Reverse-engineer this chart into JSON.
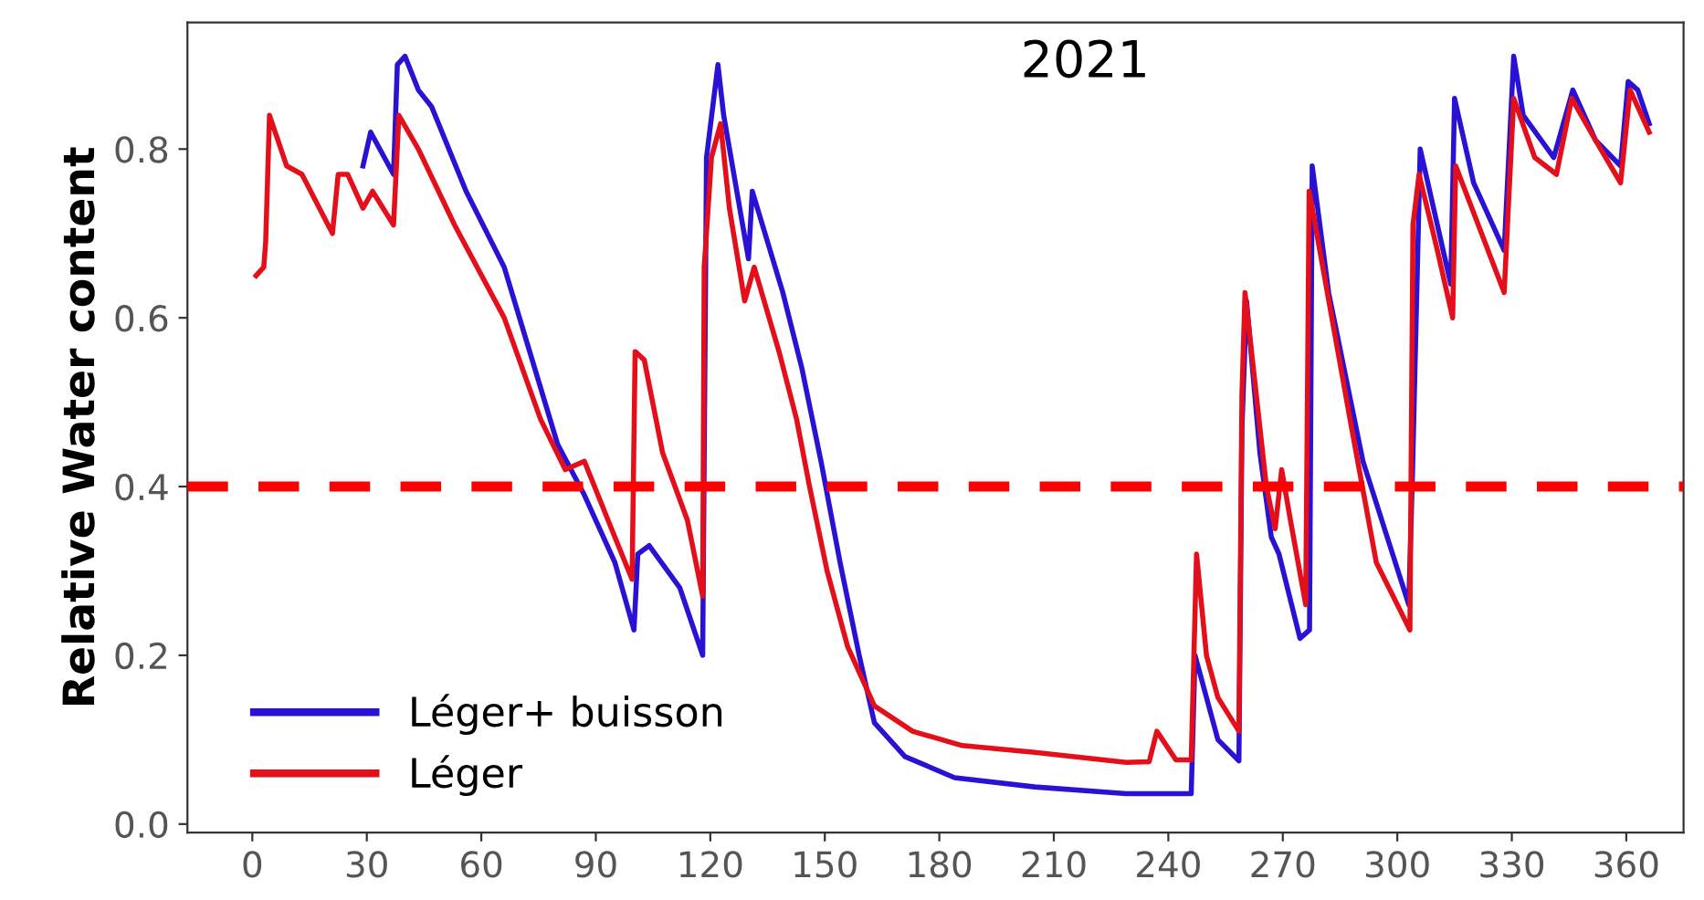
{
  "chart_data": {
    "type": "line",
    "title": "2021",
    "ylabel": "Relative Water content",
    "xlim": [
      -17,
      375
    ],
    "ylim": [
      -0.01,
      0.95
    ],
    "xticks": [
      0,
      30,
      60,
      90,
      120,
      150,
      180,
      210,
      240,
      270,
      300,
      330,
      360
    ],
    "yticks": [
      {
        "value": 0,
        "label": "0.0"
      },
      {
        "value": 0.2,
        "label": "0.2"
      },
      {
        "value": 0.4,
        "label": "0.4"
      },
      {
        "value": 0.6,
        "label": "0.6"
      },
      {
        "value": 0.8,
        "label": "0.8"
      }
    ],
    "grid": false,
    "legend": "bottom left",
    "line_style": "solid",
    "marker": "none",
    "ref_lines": [
      {
        "axis": "y",
        "value": 0.4,
        "color": "#ff0000",
        "line_style": "dashed"
      }
    ],
    "series": [
      {
        "name": "Léger+ buisson",
        "color": "#2a12d4",
        "x": [
          29,
          31,
          37,
          38,
          40,
          43.5,
          47,
          56,
          66,
          72,
          80,
          87,
          95,
          100,
          101,
          104,
          112,
          118,
          119,
          122,
          123.5,
          130,
          131,
          139,
          144,
          149,
          154,
          159,
          163,
          171,
          184,
          205,
          229,
          246,
          247,
          253,
          258.5,
          259.3,
          260.5,
          264,
          267,
          269,
          274.5,
          277,
          277.7,
          282,
          291,
          303,
          304,
          306,
          314,
          315,
          320,
          328,
          330.5,
          333,
          341,
          346,
          352,
          358.5,
          360.5,
          363,
          366
        ],
        "values": [
          0.78,
          0.82,
          0.77,
          0.9,
          0.91,
          0.87,
          0.85,
          0.75,
          0.66,
          0.57,
          0.45,
          0.39,
          0.31,
          0.23,
          0.32,
          0.33,
          0.28,
          0.2,
          0.79,
          0.9,
          0.84,
          0.67,
          0.75,
          0.63,
          0.54,
          0.43,
          0.31,
          0.2,
          0.12,
          0.08,
          0.055,
          0.044,
          0.036,
          0.036,
          0.2,
          0.1,
          0.075,
          0.47,
          0.62,
          0.44,
          0.34,
          0.32,
          0.22,
          0.23,
          0.78,
          0.63,
          0.43,
          0.26,
          0.42,
          0.8,
          0.64,
          0.86,
          0.76,
          0.68,
          0.91,
          0.84,
          0.79,
          0.87,
          0.81,
          0.78,
          0.88,
          0.87,
          0.83
        ]
      },
      {
        "name": "Léger",
        "color": "#e3101c",
        "x": [
          1,
          3,
          3.5,
          4.5,
          9,
          13,
          21,
          22.5,
          25,
          29,
          31.5,
          37,
          38.4,
          43.5,
          53,
          66,
          75.5,
          82,
          87,
          95,
          99.5,
          100.3,
          102.7,
          107.5,
          114,
          118,
          118.4,
          120.3,
          122.7,
          125,
          129,
          131.5,
          138,
          142.6,
          146,
          150.6,
          156,
          163,
          173,
          186,
          205,
          229,
          235,
          237,
          242,
          246,
          247.4,
          250,
          253,
          258.5,
          259.3,
          260.1,
          265.7,
          268,
          269.7,
          272,
          276,
          276.9,
          278.5,
          288,
          294.5,
          303.3,
          304.1,
          305.7,
          310.5,
          314.5,
          315.3,
          328,
          330.5,
          336,
          341.7,
          345.7,
          352,
          358.5,
          361,
          366
        ],
        "values": [
          0.65,
          0.66,
          0.69,
          0.84,
          0.78,
          0.77,
          0.7,
          0.77,
          0.77,
          0.73,
          0.75,
          0.71,
          0.84,
          0.8,
          0.71,
          0.6,
          0.48,
          0.42,
          0.43,
          0.34,
          0.29,
          0.56,
          0.55,
          0.44,
          0.36,
          0.27,
          0.66,
          0.79,
          0.83,
          0.73,
          0.62,
          0.66,
          0.56,
          0.48,
          0.4,
          0.3,
          0.21,
          0.14,
          0.11,
          0.093,
          0.085,
          0.073,
          0.074,
          0.11,
          0.076,
          0.076,
          0.32,
          0.2,
          0.15,
          0.11,
          0.51,
          0.63,
          0.4,
          0.35,
          0.42,
          0.36,
          0.26,
          0.75,
          0.71,
          0.47,
          0.31,
          0.23,
          0.71,
          0.77,
          0.68,
          0.6,
          0.78,
          0.63,
          0.86,
          0.79,
          0.77,
          0.86,
          0.81,
          0.76,
          0.87,
          0.82
        ]
      }
    ]
  }
}
